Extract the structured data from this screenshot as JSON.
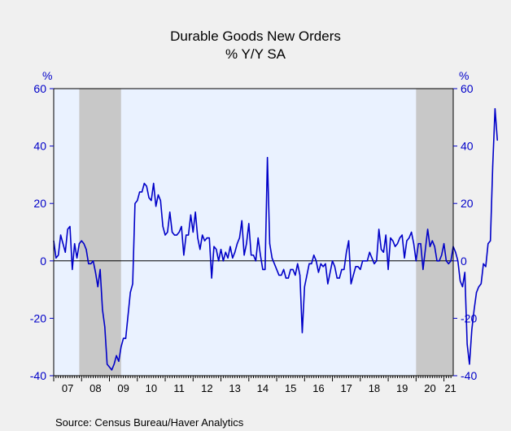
{
  "chart_data": {
    "type": "line",
    "title": "Durable Goods New Orders",
    "subtitle": "% Y/Y   SA",
    "ylabel_left": "%",
    "ylabel_right": "%",
    "source": "Source:  Census Bureau/Haver Analytics",
    "ylim": [
      -40,
      60
    ],
    "yticks": [
      -40,
      -20,
      0,
      20,
      40,
      60
    ],
    "yticks_labels": [
      "-40",
      "-20",
      "0",
      "20",
      "40",
      "60"
    ],
    "xlim": [
      2007.0,
      2021.3333
    ],
    "xtick_labels": [
      "07",
      "08",
      "09",
      "10",
      "11",
      "12",
      "13",
      "14",
      "15",
      "16",
      "17",
      "18",
      "19",
      "20",
      "21"
    ],
    "recessions": [
      [
        2007.9167,
        2009.4167
      ],
      [
        2020.0,
        2021.3333
      ]
    ],
    "colors": {
      "line": "#0000c8",
      "plot_bg": "#eaf2ff",
      "recession": "#c8c8c8",
      "page_bg": "#f0f0f0"
    },
    "series": [
      {
        "start": 2007.0,
        "step": 0.0833333,
        "values": [
          7,
          1,
          2,
          9,
          6,
          3,
          11,
          12,
          -3,
          6,
          1,
          6,
          7,
          6,
          4,
          -1,
          -1,
          0,
          -4,
          -9,
          -3,
          -17,
          -23,
          -36,
          -37,
          -38,
          -36,
          -33,
          -35,
          -30,
          -27,
          -27,
          -19,
          -11,
          -8,
          20,
          21,
          24,
          24,
          27,
          26,
          22,
          21,
          27,
          19,
          23,
          21,
          12,
          9,
          10,
          17,
          10,
          9,
          9,
          10,
          12,
          2,
          9,
          9,
          16,
          10,
          17,
          8,
          4,
          9,
          7,
          8,
          8,
          -6,
          5,
          4,
          0,
          4,
          0,
          3,
          1,
          5,
          1,
          3,
          6,
          8,
          14,
          2,
          6,
          13,
          2,
          2,
          0,
          8,
          2,
          -3,
          -3,
          36,
          6,
          1,
          -1,
          -3,
          -5,
          -5,
          -3,
          -6,
          -6,
          -3,
          -3,
          -5,
          -1,
          -5,
          -25,
          -9,
          -5,
          -1,
          -1,
          2,
          0,
          -4,
          -1,
          -2,
          -1,
          -8,
          -4,
          0,
          -2,
          -6,
          -6,
          -3,
          -3,
          3,
          7,
          -8,
          -5,
          -2,
          -2,
          -3,
          0,
          0,
          0,
          3,
          1,
          -1,
          0,
          11,
          4,
          3,
          9,
          -3,
          8,
          7,
          5,
          6,
          8,
          9,
          1,
          7,
          8,
          10,
          6,
          0,
          6,
          6,
          -3,
          4,
          11,
          5,
          7,
          5,
          0,
          0,
          2,
          6,
          0,
          -1,
          0,
          5,
          3,
          0,
          -7,
          -9,
          -4,
          -29,
          -36,
          -24,
          -17,
          -11,
          -9,
          -8,
          -1,
          -2,
          6,
          7,
          33,
          53,
          42
        ]
      }
    ]
  }
}
